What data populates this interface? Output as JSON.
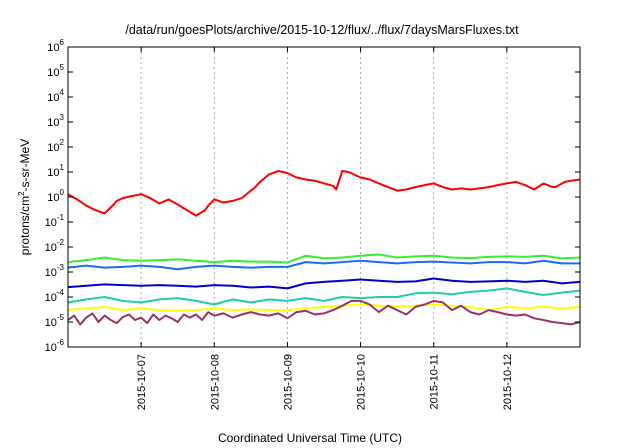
{
  "chart_data": {
    "type": "line",
    "title": "/data/run/goesPlots/archive/2015-10-12/flux/../flux/7daysMarsFluxes.txt",
    "xlabel": "Coordinated Universal Time (UTC)",
    "ylabel_parts": [
      "protons/cm",
      "2",
      "-s-sr-MeV"
    ],
    "x_unit": "days",
    "xlim": [
      "2015-10-06T00:00",
      "2015-10-13T00:00"
    ],
    "x_ticks": [
      "2015-10-07",
      "2015-10-08",
      "2015-10-09",
      "2015-10-10",
      "2015-10-11",
      "2015-10-12"
    ],
    "y_scale": "log",
    "ylim": [
      1e-06,
      1000000.0
    ],
    "y_ticks": [
      {
        "base": "10",
        "exp": "-6"
      },
      {
        "base": "10",
        "exp": "-5"
      },
      {
        "base": "10",
        "exp": "-4"
      },
      {
        "base": "10",
        "exp": "-3"
      },
      {
        "base": "10",
        "exp": "-2"
      },
      {
        "base": "10",
        "exp": "-1"
      },
      {
        "base": "10",
        "exp": "0"
      },
      {
        "base": "10",
        "exp": "1"
      },
      {
        "base": "10",
        "exp": "2"
      },
      {
        "base": "10",
        "exp": "3"
      },
      {
        "base": "10",
        "exp": "4"
      },
      {
        "base": "10",
        "exp": "5"
      },
      {
        "base": "10",
        "exp": "6"
      }
    ],
    "grid": true,
    "series": [
      {
        "color": "#ff0000",
        "x": [
          "2015-10-06T00:00",
          "2015-10-06T03:00",
          "2015-10-06T06:00",
          "2015-10-06T09:00",
          "2015-10-06T12:00",
          "2015-10-06T15:00",
          "2015-10-06T16:00",
          "2015-10-06T18:00",
          "2015-10-06T21:00",
          "2015-10-07T00:00",
          "2015-10-07T03:00",
          "2015-10-07T06:00",
          "2015-10-07T09:00",
          "2015-10-07T12:00",
          "2015-10-07T15:00",
          "2015-10-07T18:00",
          "2015-10-07T21:00",
          "2015-10-07T22:00",
          "2015-10-08T00:00",
          "2015-10-08T03:00",
          "2015-10-08T06:00",
          "2015-10-08T09:00",
          "2015-10-08T12:00",
          "2015-10-08T13:00",
          "2015-10-08T15:00",
          "2015-10-08T18:00",
          "2015-10-08T21:00",
          "2015-10-09T00:00",
          "2015-10-09T03:00",
          "2015-10-09T06:00",
          "2015-10-09T09:00",
          "2015-10-09T12:00",
          "2015-10-09T15:00",
          "2015-10-09T16:00",
          "2015-10-09T18:00",
          "2015-10-09T20:00",
          "2015-10-10T00:00",
          "2015-10-10T03:00",
          "2015-10-10T06:00",
          "2015-10-10T09:00",
          "2015-10-10T12:00",
          "2015-10-10T15:00",
          "2015-10-10T18:00",
          "2015-10-10T21:00",
          "2015-10-11T00:00",
          "2015-10-11T03:00",
          "2015-10-11T06:00",
          "2015-10-11T09:00",
          "2015-10-11T12:00",
          "2015-10-11T15:00",
          "2015-10-11T18:00",
          "2015-10-11T21:00",
          "2015-10-12T00:00",
          "2015-10-12T03:00",
          "2015-10-12T06:00",
          "2015-10-12T09:00",
          "2015-10-12T12:00",
          "2015-10-12T15:00",
          "2015-10-12T16:00",
          "2015-10-12T19:00",
          "2015-10-12T21:00",
          "2015-10-13T00:00"
        ],
        "values": [
          1.3,
          0.8,
          0.45,
          0.3,
          0.22,
          0.5,
          0.7,
          0.9,
          1.1,
          1.3,
          0.9,
          0.55,
          0.8,
          0.5,
          0.3,
          0.18,
          0.3,
          0.45,
          0.8,
          0.6,
          0.7,
          0.9,
          1.8,
          2.2,
          4,
          8,
          11,
          9,
          6,
          5,
          4.5,
          3.5,
          2.8,
          2,
          11,
          10,
          6,
          5,
          3.5,
          2.5,
          1.8,
          2,
          2.5,
          3,
          3.5,
          2.5,
          2,
          2.2,
          2,
          2.2,
          2.5,
          3,
          3.5,
          4,
          3,
          2,
          3.5,
          2.5,
          2.5,
          4,
          4.5,
          5
        ]
      },
      {
        "color": "#33ee33",
        "x": [
          "2015-10-06T00:00",
          "2015-10-06T06:00",
          "2015-10-06T12:00",
          "2015-10-06T18:00",
          "2015-10-07T00:00",
          "2015-10-07T06:00",
          "2015-10-07T12:00",
          "2015-10-07T18:00",
          "2015-10-08T00:00",
          "2015-10-08T06:00",
          "2015-10-08T12:00",
          "2015-10-08T18:00",
          "2015-10-09T00:00",
          "2015-10-09T06:00",
          "2015-10-09T12:00",
          "2015-10-09T18:00",
          "2015-10-10T00:00",
          "2015-10-10T06:00",
          "2015-10-10T12:00",
          "2015-10-10T18:00",
          "2015-10-11T00:00",
          "2015-10-11T06:00",
          "2015-10-11T12:00",
          "2015-10-11T18:00",
          "2015-10-12T00:00",
          "2015-10-12T06:00",
          "2015-10-12T12:00",
          "2015-10-12T18:00",
          "2015-10-13T00:00"
        ],
        "values": [
          0.0025,
          0.003,
          0.0038,
          0.003,
          0.0028,
          0.003,
          0.0032,
          0.0028,
          0.0025,
          0.0028,
          0.0026,
          0.0026,
          0.0024,
          0.0045,
          0.0035,
          0.0038,
          0.0045,
          0.005,
          0.0038,
          0.0042,
          0.0045,
          0.0038,
          0.0036,
          0.004,
          0.0042,
          0.004,
          0.0045,
          0.0035,
          0.0038
        ]
      },
      {
        "color": "#2266ff",
        "x": [
          "2015-10-06T00:00",
          "2015-10-06T06:00",
          "2015-10-06T12:00",
          "2015-10-06T18:00",
          "2015-10-07T00:00",
          "2015-10-07T06:00",
          "2015-10-07T12:00",
          "2015-10-07T18:00",
          "2015-10-08T00:00",
          "2015-10-08T06:00",
          "2015-10-08T12:00",
          "2015-10-08T18:00",
          "2015-10-09T00:00",
          "2015-10-09T06:00",
          "2015-10-09T12:00",
          "2015-10-09T18:00",
          "2015-10-10T00:00",
          "2015-10-10T06:00",
          "2015-10-10T12:00",
          "2015-10-10T18:00",
          "2015-10-11T00:00",
          "2015-10-11T06:00",
          "2015-10-11T12:00",
          "2015-10-11T18:00",
          "2015-10-12T00:00",
          "2015-10-12T06:00",
          "2015-10-12T12:00",
          "2015-10-12T18:00",
          "2015-10-13T00:00"
        ],
        "values": [
          0.0015,
          0.0018,
          0.0015,
          0.0016,
          0.0018,
          0.0016,
          0.0013,
          0.0016,
          0.0018,
          0.0016,
          0.0015,
          0.0016,
          0.0016,
          0.0025,
          0.0022,
          0.0025,
          0.0028,
          0.0025,
          0.0022,
          0.0025,
          0.0026,
          0.0024,
          0.0022,
          0.0025,
          0.0025,
          0.0022,
          0.0028,
          0.0022,
          0.0022
        ]
      },
      {
        "color": "#0000cc",
        "x": [
          "2015-10-06T00:00",
          "2015-10-06T06:00",
          "2015-10-06T12:00",
          "2015-10-06T18:00",
          "2015-10-07T00:00",
          "2015-10-07T06:00",
          "2015-10-07T12:00",
          "2015-10-07T18:00",
          "2015-10-08T00:00",
          "2015-10-08T06:00",
          "2015-10-08T12:00",
          "2015-10-08T18:00",
          "2015-10-09T00:00",
          "2015-10-09T06:00",
          "2015-10-09T12:00",
          "2015-10-09T18:00",
          "2015-10-10T00:00",
          "2015-10-10T06:00",
          "2015-10-10T12:00",
          "2015-10-10T18:00",
          "2015-10-11T00:00",
          "2015-10-11T06:00",
          "2015-10-11T12:00",
          "2015-10-11T18:00",
          "2015-10-12T00:00",
          "2015-10-12T06:00",
          "2015-10-12T12:00",
          "2015-10-12T18:00",
          "2015-10-13T00:00"
        ],
        "values": [
          0.00025,
          0.00028,
          0.00032,
          0.0003,
          0.00028,
          0.0003,
          0.00028,
          0.00026,
          0.0003,
          0.00028,
          0.00024,
          0.00026,
          0.00022,
          0.00035,
          0.0004,
          0.00045,
          0.0005,
          0.00045,
          0.0004,
          0.00042,
          0.00055,
          0.00045,
          0.0004,
          0.00042,
          0.00045,
          0.0004,
          0.00045,
          0.00035,
          0.0004
        ]
      },
      {
        "color": "#22ccaa",
        "x": [
          "2015-10-06T00:00",
          "2015-10-06T06:00",
          "2015-10-06T12:00",
          "2015-10-06T18:00",
          "2015-10-07T00:00",
          "2015-10-07T06:00",
          "2015-10-07T12:00",
          "2015-10-07T18:00",
          "2015-10-08T00:00",
          "2015-10-08T06:00",
          "2015-10-08T12:00",
          "2015-10-08T18:00",
          "2015-10-09T00:00",
          "2015-10-09T06:00",
          "2015-10-09T12:00",
          "2015-10-09T18:00",
          "2015-10-10T00:00",
          "2015-10-10T06:00",
          "2015-10-10T12:00",
          "2015-10-10T18:00",
          "2015-10-11T00:00",
          "2015-10-11T06:00",
          "2015-10-11T12:00",
          "2015-10-11T18:00",
          "2015-10-12T00:00",
          "2015-10-12T06:00",
          "2015-10-12T12:00",
          "2015-10-12T18:00",
          "2015-10-13T00:00"
        ],
        "values": [
          6e-05,
          8e-05,
          0.0001,
          7e-05,
          6e-05,
          8e-05,
          9e-05,
          7e-05,
          5e-05,
          8e-05,
          6e-05,
          8e-05,
          7e-05,
          9e-05,
          7e-05,
          0.0001,
          9e-05,
          0.0001,
          0.0001,
          0.00014,
          0.00015,
          0.00013,
          0.00016,
          0.00018,
          0.00022,
          0.00016,
          0.00012,
          0.00015,
          0.00018
        ]
      },
      {
        "color": "#ffff00",
        "x": [
          "2015-10-06T00:00",
          "2015-10-06T06:00",
          "2015-10-06T12:00",
          "2015-10-06T18:00",
          "2015-10-07T00:00",
          "2015-10-07T06:00",
          "2015-10-07T12:00",
          "2015-10-07T18:00",
          "2015-10-08T00:00",
          "2015-10-08T06:00",
          "2015-10-08T12:00",
          "2015-10-08T18:00",
          "2015-10-09T00:00",
          "2015-10-09T06:00",
          "2015-10-09T12:00",
          "2015-10-09T18:00",
          "2015-10-10T00:00",
          "2015-10-10T06:00",
          "2015-10-10T12:00",
          "2015-10-10T18:00",
          "2015-10-11T00:00",
          "2015-10-11T06:00",
          "2015-10-11T12:00",
          "2015-10-11T18:00",
          "2015-10-12T00:00",
          "2015-10-12T06:00",
          "2015-10-12T12:00",
          "2015-10-12T18:00",
          "2015-10-13T00:00"
        ],
        "values": [
          3e-05,
          3.5e-05,
          4e-05,
          3e-05,
          3.5e-05,
          3e-05,
          2.8e-05,
          3e-05,
          3.5e-05,
          3e-05,
          3.2e-05,
          3e-05,
          3e-05,
          3.5e-05,
          4e-05,
          4.5e-05,
          5e-05,
          4.5e-05,
          4e-05,
          4.5e-05,
          5e-05,
          4.5e-05,
          4e-05,
          3e-05,
          4e-05,
          3.5e-05,
          4e-05,
          3.5e-05,
          4e-05
        ]
      },
      {
        "color": "#993366",
        "x": [
          "2015-10-06T00:00",
          "2015-10-06T02:00",
          "2015-10-06T04:00",
          "2015-10-06T06:00",
          "2015-10-06T08:00",
          "2015-10-06T10:00",
          "2015-10-06T12:00",
          "2015-10-06T14:00",
          "2015-10-06T16:00",
          "2015-10-06T18:00",
          "2015-10-06T20:00",
          "2015-10-06T22:00",
          "2015-10-07T00:00",
          "2015-10-07T02:00",
          "2015-10-07T04:00",
          "2015-10-07T06:00",
          "2015-10-07T08:00",
          "2015-10-07T10:00",
          "2015-10-07T12:00",
          "2015-10-07T14:00",
          "2015-10-07T16:00",
          "2015-10-07T18:00",
          "2015-10-07T20:00",
          "2015-10-07T22:00",
          "2015-10-08T00:00",
          "2015-10-08T03:00",
          "2015-10-08T06:00",
          "2015-10-08T09:00",
          "2015-10-08T12:00",
          "2015-10-08T15:00",
          "2015-10-08T18:00",
          "2015-10-08T21:00",
          "2015-10-09T00:00",
          "2015-10-09T03:00",
          "2015-10-09T06:00",
          "2015-10-09T09:00",
          "2015-10-09T12:00",
          "2015-10-09T15:00",
          "2015-10-09T18:00",
          "2015-10-09T21:00",
          "2015-10-10T00:00",
          "2015-10-10T03:00",
          "2015-10-10T06:00",
          "2015-10-10T09:00",
          "2015-10-10T12:00",
          "2015-10-10T15:00",
          "2015-10-10T18:00",
          "2015-10-10T21:00",
          "2015-10-11T00:00",
          "2015-10-11T03:00",
          "2015-10-11T06:00",
          "2015-10-11T09:00",
          "2015-10-11T12:00",
          "2015-10-11T15:00",
          "2015-10-11T18:00",
          "2015-10-11T21:00",
          "2015-10-12T00:00",
          "2015-10-12T03:00",
          "2015-10-12T06:00",
          "2015-10-12T09:00",
          "2015-10-12T12:00",
          "2015-10-12T15:00",
          "2015-10-12T18:00",
          "2015-10-12T21:00",
          "2015-10-13T00:00"
        ],
        "values": [
          1.2e-05,
          1.8e-05,
          8e-06,
          1.5e-05,
          2.2e-05,
          1e-05,
          1.8e-05,
          1.2e-05,
          9e-06,
          1.6e-05,
          2e-05,
          1.2e-05,
          1.5e-05,
          9e-06,
          2e-05,
          1.2e-05,
          1.8e-05,
          1.4e-05,
          1e-05,
          2e-05,
          1.5e-05,
          2e-05,
          1.2e-05,
          2.5e-05,
          1.8e-05,
          2.2e-05,
          1.5e-05,
          2e-05,
          2.5e-05,
          2e-05,
          1.8e-05,
          2.2e-05,
          1.4e-05,
          2.5e-05,
          2.8e-05,
          2e-05,
          2.2e-05,
          3e-05,
          4.5e-05,
          7e-05,
          7e-05,
          5e-05,
          2.5e-05,
          4.5e-05,
          3e-05,
          2e-05,
          4e-05,
          5e-05,
          7e-05,
          6e-05,
          3e-05,
          4.5e-05,
          2.5e-05,
          2e-05,
          3e-05,
          2.5e-05,
          2e-05,
          1.8e-05,
          2e-05,
          1.4e-05,
          1.2e-05,
          1e-05,
          9e-06,
          8e-06,
          1e-05
        ]
      }
    ]
  }
}
